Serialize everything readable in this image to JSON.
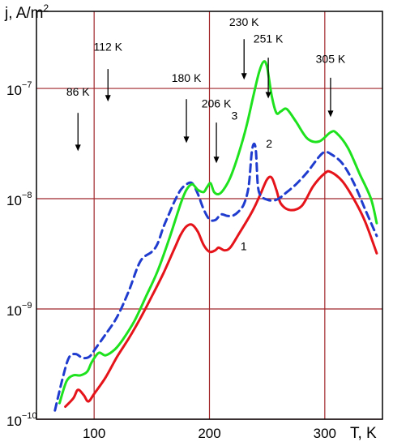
{
  "chart_data": {
    "type": "line",
    "title": "",
    "xlabel": "T, K",
    "ylabel_base": "j, A/m",
    "ylabel_exp": "2",
    "yscale": "log",
    "xlim": [
      50,
      350
    ],
    "ylim": [
      1e-10,
      5e-07
    ],
    "grid": true,
    "grid_color": "#a0262a",
    "x_ticks": [
      {
        "value": 100,
        "label": "100"
      },
      {
        "value": 200,
        "label": "200"
      },
      {
        "value": 300,
        "label": "300"
      }
    ],
    "y_ticks": [
      {
        "value": 1e-10,
        "base": "10",
        "exp": "−10"
      },
      {
        "value": 1e-09,
        "base": "10",
        "exp": "−9"
      },
      {
        "value": 1e-08,
        "base": "10",
        "exp": "−8"
      },
      {
        "value": 1e-07,
        "base": "10",
        "exp": "−7"
      }
    ],
    "annotations": [
      {
        "text": "86 K",
        "x": 86,
        "text_y": 8.6e-08,
        "arrow_from": 6e-08,
        "arrow_to": 2.7e-08
      },
      {
        "text": "112 K",
        "x": 112,
        "text_y": 2.2e-07,
        "arrow_from": 1.5e-07,
        "arrow_to": 7.6e-08
      },
      {
        "text": "180 K",
        "x": 180,
        "text_y": 1.15e-07,
        "arrow_from": 8e-08,
        "arrow_to": 3.2e-08
      },
      {
        "text": "206 K",
        "x": 206,
        "text_y": 6.7e-08,
        "arrow_from": 4.9e-08,
        "arrow_to": 2.1e-08
      },
      {
        "text": "230 K",
        "x": 230,
        "text_y": 3.7e-07,
        "arrow_from": 2.8e-07,
        "arrow_to": 1.2e-07
      },
      {
        "text": "251 K",
        "x": 251,
        "text_y": 2.6e-07,
        "arrow_from": 1.9e-07,
        "arrow_to": 8.1e-08
      },
      {
        "text": "305 K",
        "x": 305,
        "text_y": 1.7e-07,
        "arrow_from": 1.25e-07,
        "arrow_to": 5.5e-08
      }
    ],
    "series": [
      {
        "name": "1",
        "color": "#e5131a",
        "dash": "",
        "label": {
          "x": 227,
          "y": 3.4e-09
        },
        "x": [
          75,
          82,
          86,
          91,
          95,
          100,
          110,
          120,
          130,
          140,
          150,
          160,
          170,
          175,
          180,
          185,
          190,
          195,
          200,
          205,
          208,
          213,
          218,
          225,
          235,
          240,
          245,
          250,
          254,
          258,
          262,
          270,
          280,
          290,
          300,
          305,
          315,
          325,
          335,
          345
        ],
        "values": [
          1.3e-10,
          1.55e-10,
          1.85e-10,
          1.65e-10,
          1.45e-10,
          1.7e-10,
          2.4e-10,
          3.7e-10,
          5.4e-10,
          8.2e-10,
          1.3e-09,
          2.1e-09,
          3.6e-09,
          4.7e-09,
          5.6e-09,
          5.8e-09,
          5e-09,
          3.8e-09,
          3.3e-09,
          3.4e-09,
          3.6e-09,
          3.4e-09,
          3.6e-09,
          4.7e-09,
          7e-09,
          8.8e-09,
          1.15e-08,
          1.5e-08,
          1.55e-08,
          1.2e-08,
          9e-09,
          7.9e-09,
          8.6e-09,
          1.3e-08,
          1.7e-08,
          1.75e-08,
          1.45e-08,
          1e-08,
          6.2e-09,
          3.2e-09
        ]
      },
      {
        "name": "2",
        "color": "#1f3ccf",
        "dash": "9,6",
        "label": {
          "x": 249,
          "y": 2.9e-08
        },
        "x": [
          66,
          72,
          78,
          84,
          90,
          96,
          102,
          110,
          120,
          130,
          140,
          150,
          155,
          160,
          165,
          170,
          175,
          180,
          185,
          190,
          195,
          200,
          205,
          210,
          215,
          220,
          225,
          230,
          234,
          237,
          240,
          242,
          245,
          250,
          255,
          260,
          265,
          275,
          285,
          295,
          300,
          305,
          315,
          325,
          335,
          345
        ],
        "values": [
          1.2e-10,
          2.2e-10,
          3.6e-10,
          3.9e-10,
          3.6e-10,
          3.7e-10,
          4.5e-10,
          5.9e-10,
          8.5e-10,
          1.45e-09,
          2.7e-09,
          3.3e-09,
          3.9e-09,
          5.5e-09,
          7.3e-09,
          9.6e-09,
          1.2e-08,
          1.35e-08,
          1.38e-08,
          1.1e-08,
          8e-09,
          6.5e-09,
          6.4e-09,
          7.2e-09,
          7e-09,
          7e-09,
          7.6e-09,
          9e-09,
          1.3e-08,
          2.8e-08,
          2.9e-08,
          1.3e-08,
          1.05e-08,
          9.8e-09,
          9.6e-09,
          1e-08,
          1.1e-08,
          1.35e-08,
          1.75e-08,
          2.4e-08,
          2.65e-08,
          2.55e-08,
          2.1e-08,
          1.4e-08,
          8e-09,
          4.6e-09
        ]
      },
      {
        "name": "3",
        "color": "#1ee21e",
        "dash": "",
        "label": {
          "x": 219,
          "y": 5.2e-08
        },
        "x": [
          70,
          76,
          82,
          88,
          94,
          98,
          104,
          110,
          118,
          125,
          135,
          145,
          155,
          165,
          175,
          180,
          185,
          190,
          195,
          198,
          201,
          204,
          208,
          212,
          218,
          225,
          232,
          238,
          243,
          247,
          250,
          254,
          258,
          262,
          267,
          275,
          285,
          295,
          305,
          310,
          320,
          330,
          340,
          345
        ],
        "values": [
          1.4e-10,
          2.2e-10,
          2.5e-10,
          2.5e-10,
          2.7e-10,
          3.3e-10,
          4e-10,
          3.8e-10,
          4.3e-10,
          5.3e-10,
          7.8e-10,
          1.3e-09,
          2.2e-09,
          4.3e-09,
          9e-09,
          1.2e-08,
          1.35e-08,
          1.2e-08,
          1.15e-08,
          1.28e-08,
          1.38e-08,
          1.15e-08,
          1.1e-08,
          1.2e-08,
          1.55e-08,
          2.5e-08,
          4.5e-08,
          8.5e-08,
          1.4e-07,
          1.75e-07,
          1.55e-07,
          8.5e-08,
          6e-08,
          6.2e-08,
          6.5e-08,
          5e-08,
          3.5e-08,
          3.3e-08,
          4e-08,
          3.95e-08,
          2.9e-08,
          1.7e-08,
          1e-08,
          6e-09
        ]
      }
    ]
  }
}
